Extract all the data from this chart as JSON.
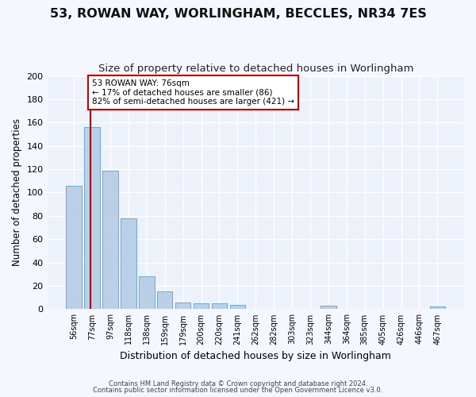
{
  "title1": "53, ROWAN WAY, WORLINGHAM, BECCLES, NR34 7ES",
  "title2": "Size of property relative to detached houses in Worlingham",
  "xlabel": "Distribution of detached houses by size in Worlingham",
  "ylabel": "Number of detached properties",
  "bin_labels": [
    "56sqm",
    "77sqm",
    "97sqm",
    "118sqm",
    "138sqm",
    "159sqm",
    "179sqm",
    "200sqm",
    "220sqm",
    "241sqm",
    "262sqm",
    "282sqm",
    "303sqm",
    "323sqm",
    "344sqm",
    "364sqm",
    "385sqm",
    "405sqm",
    "426sqm",
    "446sqm",
    "467sqm"
  ],
  "bar_values": [
    106,
    156,
    119,
    78,
    28,
    15,
    6,
    5,
    5,
    4,
    0,
    0,
    0,
    0,
    3,
    0,
    0,
    0,
    0,
    0,
    2
  ],
  "bar_color": "#bad0e8",
  "bar_edge_color": "#6aaad4",
  "vline_color": "#cc0000",
  "ylim": [
    0,
    200
  ],
  "yticks": [
    0,
    20,
    40,
    60,
    80,
    100,
    120,
    140,
    160,
    180,
    200
  ],
  "annotation_line1": "53 ROWAN WAY: 76sqm",
  "annotation_line2": "← 17% of detached houses are smaller (86)",
  "annotation_line3": "82% of semi-detached houses are larger (421) →",
  "annotation_box_color": "#ffffff",
  "annotation_box_edge": "#cc0000",
  "footer1": "Contains HM Land Registry data © Crown copyright and database right 2024.",
  "footer2": "Contains public sector information licensed under the Open Government Licence v3.0.",
  "bg_color": "#edf2fa",
  "grid_color": "#ffffff",
  "fig_bg_color": "#f5f7ff",
  "title1_fontsize": 11.5,
  "title2_fontsize": 9.5,
  "ylabel_fontsize": 8.5,
  "xlabel_fontsize": 9,
  "tick_fontsize": 7,
  "ann_fontsize": 7.5,
  "footer_fontsize": 6
}
